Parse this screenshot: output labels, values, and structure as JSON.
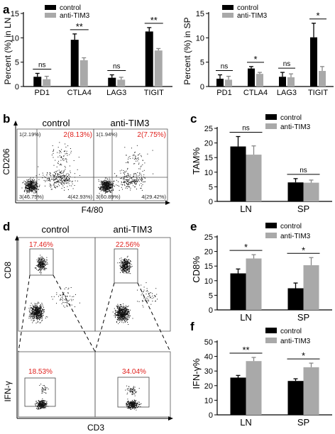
{
  "colors": {
    "control": "#000000",
    "anti": "#a9a9a9",
    "red": "#e0201c"
  },
  "legend": {
    "control": "control",
    "anti": "anti-TIM3"
  },
  "panel_labels": {
    "a": "a",
    "b": "b",
    "c": "c",
    "d": "d",
    "e": "e",
    "f": "f"
  },
  "chart_data": [
    {
      "id": "a_ln",
      "type": "bar",
      "categories": [
        "PD1",
        "CTLA4",
        "LAG3",
        "TIGIT"
      ],
      "series": [
        {
          "name": "control",
          "values": [
            2.0,
            9.6,
            1.8,
            11.3
          ],
          "errors": [
            0.7,
            1.2,
            0.6,
            0.8
          ]
        },
        {
          "name": "anti-TIM3",
          "values": [
            1.5,
            5.4,
            1.4,
            7.4
          ],
          "errors": [
            0.6,
            0.5,
            0.5,
            0.4
          ]
        }
      ],
      "ylabel": "Percent (%) in LN",
      "ylim": [
        0,
        15
      ],
      "yticks": [
        0,
        5,
        10,
        15
      ],
      "significance": [
        "ns",
        "**",
        "ns",
        "**"
      ]
    },
    {
      "id": "a_sp",
      "type": "bar",
      "categories": [
        "PD1",
        "CTLA4",
        "LAG3",
        "TIGIT"
      ],
      "series": [
        {
          "name": "control",
          "values": [
            1.6,
            3.7,
            2.0,
            10.1
          ],
          "errors": [
            0.8,
            0.4,
            0.9,
            2.9
          ]
        },
        {
          "name": "anti-TIM3",
          "values": [
            1.4,
            2.6,
            1.9,
            3.2
          ],
          "errors": [
            0.7,
            0.3,
            0.7,
            0.9
          ]
        }
      ],
      "ylabel": "Percent (%) in SP",
      "ylim": [
        0,
        15
      ],
      "yticks": [
        0,
        5,
        10,
        15
      ],
      "significance": [
        "ns",
        "*",
        "ns",
        "*"
      ]
    },
    {
      "id": "c",
      "type": "bar",
      "categories": [
        "LN",
        "SP"
      ],
      "series": [
        {
          "name": "control",
          "values": [
            18.8,
            6.5
          ],
          "errors": [
            3.4,
            1.3
          ]
        },
        {
          "name": "anti-TIM3",
          "values": [
            16.0,
            6.4
          ],
          "errors": [
            3.0,
            0.9
          ]
        }
      ],
      "ylabel": "TAM%",
      "ylim": [
        0,
        25
      ],
      "yticks": [
        0,
        5,
        10,
        15,
        20,
        25
      ],
      "significance": [
        "ns",
        "ns"
      ]
    },
    {
      "id": "e",
      "type": "bar",
      "categories": [
        "LN",
        "SP"
      ],
      "series": [
        {
          "name": "control",
          "values": [
            12.5,
            7.4
          ],
          "errors": [
            1.5,
            1.8
          ]
        },
        {
          "name": "anti-TIM3",
          "values": [
            17.6,
            15.3
          ],
          "errors": [
            1.3,
            2.6
          ]
        }
      ],
      "ylabel": "CD8%",
      "ylim": [
        0,
        25
      ],
      "yticks": [
        0,
        5,
        10,
        15,
        20,
        25
      ],
      "significance": [
        "*",
        "*"
      ]
    },
    {
      "id": "f",
      "type": "bar",
      "categories": [
        "LN",
        "SP"
      ],
      "series": [
        {
          "name": "control",
          "values": [
            25.5,
            23.2
          ],
          "errors": [
            1.5,
            1.5
          ]
        },
        {
          "name": "anti-TIM3",
          "values": [
            36.8,
            32.6
          ],
          "errors": [
            2.5,
            2.8
          ]
        }
      ],
      "ylabel": "IFN-γ%",
      "ylim": [
        0,
        50
      ],
      "yticks": [
        0,
        10,
        20,
        30,
        40,
        50
      ],
      "significance": [
        "**",
        "*"
      ]
    }
  ],
  "flow_b": {
    "xlabel": "F4/80",
    "ylabel": "CD206",
    "plots": [
      {
        "title": "control",
        "q1": "1(2.19%)",
        "q2": "2(8.13%)",
        "q3": "3(46.75%)",
        "q4": "4(42.93%)"
      },
      {
        "title": "anti-TIM3",
        "q1": "1(1.94%)",
        "q2": "2(7.75%)",
        "q3": "3(60.89%)",
        "q4": "4(29.42%)"
      }
    ]
  },
  "flow_d": {
    "xlabel": "CD3",
    "ylabel_top": "CD8",
    "ylabel_bottom": "IFN-γ",
    "plots": [
      {
        "title": "control",
        "cd8": "17.46%",
        "ifng": "18.53%"
      },
      {
        "title": "anti-TIM3",
        "cd8": "22.56%",
        "ifng": "34.04%"
      }
    ]
  }
}
